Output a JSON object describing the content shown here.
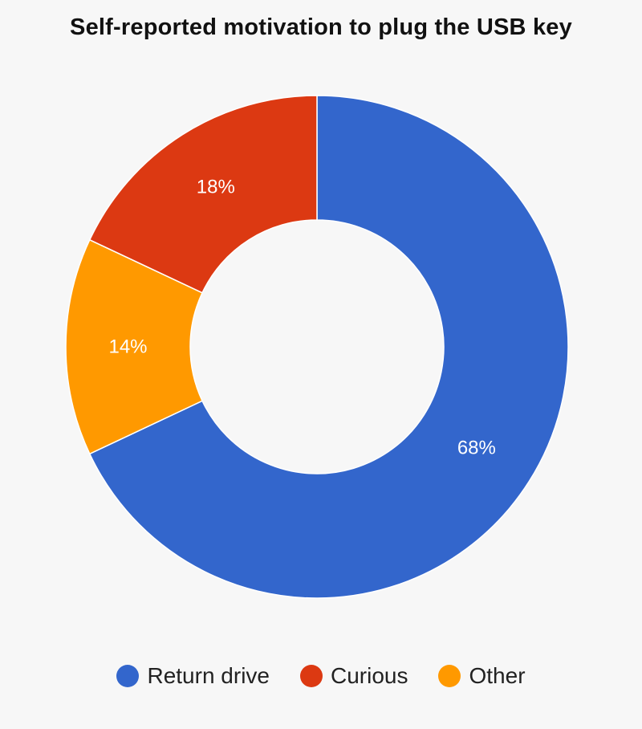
{
  "chart_data": {
    "type": "pie",
    "title": "Self-reported motivation to plug the USB key",
    "donut": true,
    "legend_position": "bottom",
    "slices": [
      {
        "label": "Return drive",
        "value": 68,
        "display": "68%",
        "color": "#3366cc"
      },
      {
        "label": "Other",
        "value": 14,
        "display": "14%",
        "color": "#ff9900"
      },
      {
        "label": "Curious",
        "value": 18,
        "display": "18%",
        "color": "#dc3912"
      }
    ],
    "legend": [
      {
        "label": "Return drive",
        "color": "#3366cc"
      },
      {
        "label": "Curious",
        "color": "#dc3912"
      },
      {
        "label": "Other",
        "color": "#ff9900"
      }
    ]
  }
}
